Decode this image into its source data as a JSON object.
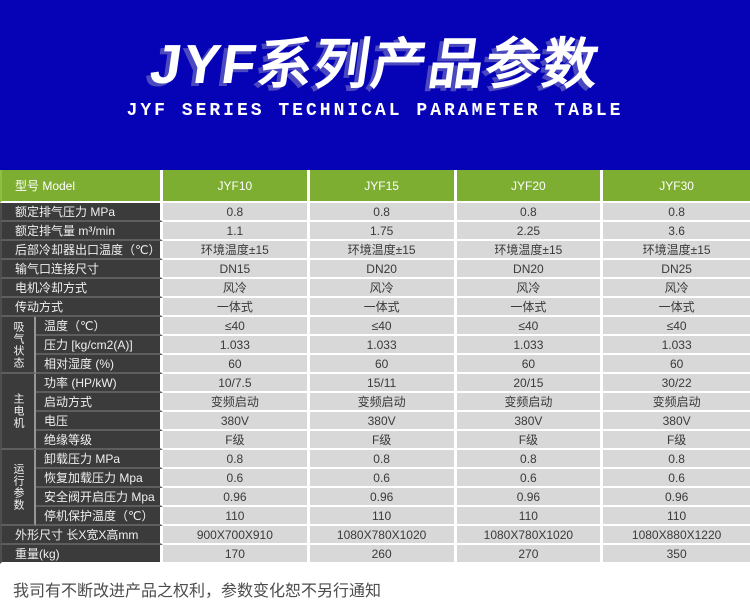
{
  "banner": {
    "title": "JYF系列产品参数",
    "subtitle": "JYF SERIES TECHNICAL PARAMETER TABLE"
  },
  "colors": {
    "banner_bg": "#0602B6",
    "header_green": "#7DAE32",
    "label_dark": "#3B3B3B",
    "cell_gray": "#D8D8D8"
  },
  "table": {
    "header": {
      "label": "型号 Model",
      "models": [
        "JYF10",
        "JYF15",
        "JYF20",
        "JYF30"
      ]
    },
    "rows": [
      {
        "label": "额定排气压力 MPa",
        "values": [
          "0.8",
          "0.8",
          "0.8",
          "0.8"
        ]
      },
      {
        "label": "额定排气量 m³/min",
        "values": [
          "1.1",
          "1.75",
          "2.25",
          "3.6"
        ]
      },
      {
        "label": "后部冷却器出口温度（℃）",
        "values": [
          "环境温度±15",
          "环境温度±15",
          "环境温度±15",
          "环境温度±15"
        ]
      },
      {
        "label": "输气口连接尺寸",
        "values": [
          "DN15",
          "DN20",
          "DN20",
          "DN25"
        ]
      },
      {
        "label": "电机冷却方式",
        "values": [
          "风冷",
          "风冷",
          "风冷",
          "风冷"
        ]
      },
      {
        "label": "传动方式",
        "values": [
          "一体式",
          "一体式",
          "一体式",
          "一体式"
        ]
      },
      {
        "group": "吸气状态",
        "span": 3,
        "label": "温度（℃）",
        "values": [
          "≤40",
          "≤40",
          "≤40",
          "≤40"
        ]
      },
      {
        "sub": true,
        "label": "压力 [kg/cm2(A)]",
        "values": [
          "1.033",
          "1.033",
          "1.033",
          "1.033"
        ]
      },
      {
        "sub": true,
        "label": "相对湿度 (%)",
        "values": [
          "60",
          "60",
          "60",
          "60"
        ]
      },
      {
        "group": "主电机",
        "span": 4,
        "label": "功率 (HP/kW)",
        "values": [
          "10/7.5",
          "15/11",
          "20/15",
          "30/22"
        ]
      },
      {
        "sub": true,
        "label": "启动方式",
        "values": [
          "变频启动",
          "变频启动",
          "变频启动",
          "变频启动"
        ]
      },
      {
        "sub": true,
        "label": "电压",
        "values": [
          "380V",
          "380V",
          "380V",
          "380V"
        ]
      },
      {
        "sub": true,
        "label": "绝缘等级",
        "values": [
          "F级",
          "F级",
          "F级",
          "F级"
        ]
      },
      {
        "group": "运行参数",
        "span": 4,
        "label": "卸载压力 MPa",
        "values": [
          "0.8",
          "0.8",
          "0.8",
          "0.8"
        ]
      },
      {
        "sub": true,
        "label": "恢复加载压力 Mpa",
        "values": [
          "0.6",
          "0.6",
          "0.6",
          "0.6"
        ]
      },
      {
        "sub": true,
        "label": "安全阀开启压力 Mpa",
        "values": [
          "0.96",
          "0.96",
          "0.96",
          "0.96"
        ]
      },
      {
        "sub": true,
        "label": "停机保护温度（℃）",
        "values": [
          "110",
          "110",
          "110",
          "110"
        ]
      },
      {
        "label": "外形尺寸 长X宽X高mm",
        "values": [
          "900X700X910",
          "1080X780X1020",
          "1080X780X1020",
          "1080X880X1220"
        ]
      },
      {
        "label": "重量(kg)",
        "values": [
          "170",
          "260",
          "270",
          "350"
        ]
      }
    ]
  },
  "footer": {
    "note": "我司有不断改进产品之权利，参数变化恕不另行通知"
  }
}
